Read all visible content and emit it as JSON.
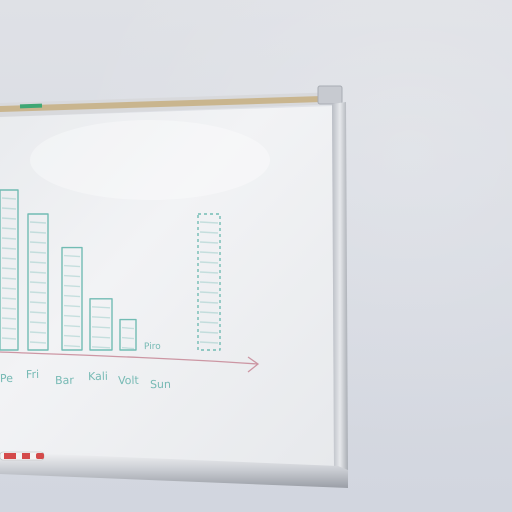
{
  "scene": {
    "subject": "whiteboard-with-hand-drawn-bar-chart",
    "colors": {
      "wall": "#dcdfe5",
      "board": "#f1f3f5",
      "frame": "#c8cbd1",
      "cork_strip": "#c9b58e",
      "marker_teal": "#5db3a9",
      "marker_red": "#d44a4a"
    }
  },
  "whiteboard": {
    "drawing": {
      "bar_count": 8,
      "axis_arrow": "horizontal-arrow-right",
      "bar_relative_heights": [
        1.0,
        0.85,
        0.64,
        0.32,
        0.19,
        0.0,
        0.0,
        0.85
      ]
    },
    "x_labels": [
      "Pe",
      "Fri",
      "Bar",
      "Kali",
      "Volt",
      "Sun"
    ],
    "small_label": "Piro"
  }
}
